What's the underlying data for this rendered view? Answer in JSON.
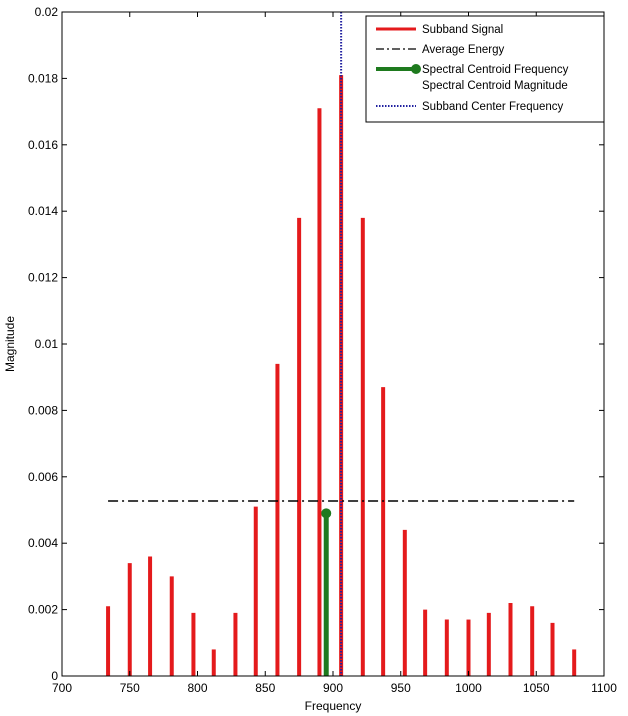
{
  "chart_data": {
    "type": "bar",
    "title": "",
    "xlabel": "Frequency",
    "ylabel": "Magnitude",
    "xlim": [
      700,
      1100
    ],
    "ylim": [
      0,
      0.02
    ],
    "xticks": [
      "700",
      "750",
      "800",
      "850",
      "900",
      "950",
      "1000",
      "1050",
      "1100"
    ],
    "yticks": [
      "0",
      "0.002",
      "0.004",
      "0.006",
      "0.008",
      "0.01",
      "0.012",
      "0.014",
      "0.016",
      "0.018",
      "0.02"
    ],
    "grid": false,
    "legend_position": "top-right",
    "series": [
      {
        "name": "Subband Signal",
        "style": "stem",
        "color": "#e41a1c",
        "x": [
          734,
          750,
          765,
          781,
          797,
          812,
          828,
          843,
          859,
          875,
          890,
          906,
          922,
          937,
          953,
          968,
          984,
          1000,
          1015,
          1031,
          1047,
          1062,
          1078
        ],
        "values": [
          0.0021,
          0.0034,
          0.0036,
          0.003,
          0.0019,
          0.0008,
          0.0019,
          0.0051,
          0.0094,
          0.0138,
          0.0171,
          0.0181,
          0.0138,
          0.0087,
          0.0044,
          0.002,
          0.0017,
          0.0017,
          0.0019,
          0.0022,
          0.0021,
          0.0016,
          0.0008
        ]
      },
      {
        "name": "Average Energy",
        "style": "dash-dot",
        "color": "#000000",
        "x": [
          734,
          1078
        ],
        "values": [
          0.00527,
          0.00527
        ]
      },
      {
        "name": "Spectral Centroid Frequency",
        "style": "stem-marker",
        "color": "#1e7a1e",
        "x": [
          895
        ],
        "values": [
          0.0049
        ]
      },
      {
        "name": "Subband Center Frequency",
        "style": "dotted-vertical",
        "color": "#2020a0",
        "x": [
          906
        ]
      }
    ],
    "legend": [
      {
        "label": "Subband Signal",
        "style": "solid",
        "color": "#e41a1c"
      },
      {
        "label": "Average Energy",
        "style": "dash-dot",
        "color": "#000000"
      },
      {
        "label": "Spectral Centroid Frequency",
        "style": "marker",
        "color": "#1e7a1e"
      },
      {
        "label": "Spectral Centroid Magnitude",
        "style": "none",
        "color": "#1e7a1e"
      },
      {
        "label": "Subband Center Frequency",
        "style": "dotted",
        "color": "#2020a0"
      }
    ]
  }
}
